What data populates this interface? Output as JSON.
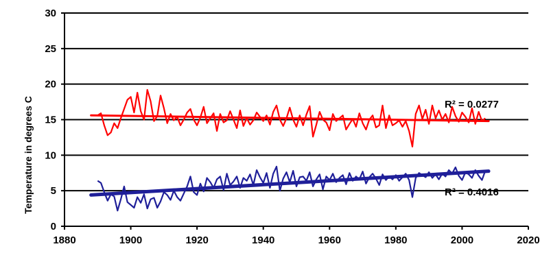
{
  "chart_data": {
    "type": "line",
    "title": "",
    "xlabel": "",
    "ylabel": "Temperature in degrees C",
    "xlim": [
      1880,
      2020
    ],
    "ylim": [
      0,
      30
    ],
    "x_ticks": [
      1880,
      1900,
      1920,
      1940,
      1960,
      1980,
      2000,
      2020
    ],
    "y_ticks": [
      0,
      5,
      10,
      15,
      20,
      25,
      30
    ],
    "grid": "horizontal",
    "legend": "none",
    "series": [
      {
        "color": "#ff0000",
        "x": [
          1890,
          1891,
          1892,
          1893,
          1894,
          1895,
          1896,
          1897,
          1898,
          1899,
          1900,
          1901,
          1902,
          1903,
          1904,
          1905,
          1906,
          1907,
          1908,
          1909,
          1910,
          1911,
          1912,
          1913,
          1914,
          1915,
          1916,
          1917,
          1918,
          1919,
          1920,
          1921,
          1922,
          1923,
          1924,
          1925,
          1926,
          1927,
          1928,
          1929,
          1930,
          1931,
          1932,
          1933,
          1934,
          1935,
          1936,
          1937,
          1938,
          1939,
          1940,
          1941,
          1942,
          1943,
          1944,
          1945,
          1946,
          1947,
          1948,
          1949,
          1950,
          1951,
          1952,
          1953,
          1954,
          1955,
          1956,
          1957,
          1958,
          1959,
          1960,
          1961,
          1962,
          1963,
          1964,
          1965,
          1966,
          1967,
          1968,
          1969,
          1970,
          1971,
          1972,
          1973,
          1974,
          1975,
          1976,
          1977,
          1978,
          1979,
          1980,
          1981,
          1982,
          1983,
          1984,
          1985,
          1986,
          1987,
          1988,
          1989,
          1990,
          1991,
          1992,
          1993,
          1994,
          1995,
          1996,
          1997,
          1998,
          1999,
          2000,
          2001,
          2002,
          2003,
          2004,
          2005,
          2006,
          2007
        ],
        "values": [
          15.6,
          15.9,
          14.2,
          12.8,
          13.2,
          14.5,
          13.8,
          15.2,
          16.5,
          17.8,
          18.2,
          16.0,
          18.8,
          16.2,
          15.0,
          19.2,
          17.6,
          14.8,
          15.5,
          18.4,
          16.6,
          14.5,
          15.8,
          14.9,
          15.4,
          14.2,
          15.0,
          16.0,
          16.5,
          15.0,
          14.2,
          15.3,
          16.8,
          14.5,
          15.2,
          15.9,
          13.4,
          15.8,
          14.6,
          14.9,
          16.2,
          15.0,
          13.8,
          16.3,
          14.1,
          15.2,
          14.3,
          14.9,
          16.0,
          15.4,
          14.8,
          15.6,
          14.3,
          16.1,
          17.0,
          15.0,
          14.1,
          15.2,
          16.7,
          15.0,
          14.0,
          15.6,
          14.2,
          15.7,
          16.9,
          12.6,
          14.3,
          16.1,
          15.0,
          14.6,
          13.5,
          15.8,
          14.8,
          15.2,
          15.6,
          13.6,
          14.4,
          15.1,
          14.0,
          15.9,
          14.5,
          13.6,
          15.0,
          15.6,
          13.9,
          14.2,
          17.0,
          13.8,
          15.6,
          14.2,
          14.5,
          14.9,
          14.0,
          14.8,
          13.4,
          11.2,
          15.8,
          17.0,
          15.1,
          16.4,
          14.4,
          17.0,
          15.2,
          16.3,
          15.0,
          15.8,
          14.6,
          16.8,
          15.5,
          14.7,
          16.0,
          15.4,
          14.6,
          16.6,
          14.4,
          16.1,
          14.8,
          15.2
        ]
      },
      {
        "color": "#1f1f99",
        "x": [
          1890,
          1891,
          1892,
          1893,
          1894,
          1895,
          1896,
          1897,
          1898,
          1899,
          1900,
          1901,
          1902,
          1903,
          1904,
          1905,
          1906,
          1907,
          1908,
          1909,
          1910,
          1911,
          1912,
          1913,
          1914,
          1915,
          1916,
          1917,
          1918,
          1919,
          1920,
          1921,
          1922,
          1923,
          1924,
          1925,
          1926,
          1927,
          1928,
          1929,
          1930,
          1931,
          1932,
          1933,
          1934,
          1935,
          1936,
          1937,
          1938,
          1939,
          1940,
          1941,
          1942,
          1943,
          1944,
          1945,
          1946,
          1947,
          1948,
          1949,
          1950,
          1951,
          1952,
          1953,
          1954,
          1955,
          1956,
          1957,
          1958,
          1959,
          1960,
          1961,
          1962,
          1963,
          1964,
          1965,
          1966,
          1967,
          1968,
          1969,
          1970,
          1971,
          1972,
          1973,
          1974,
          1975,
          1976,
          1977,
          1978,
          1979,
          1980,
          1981,
          1982,
          1983,
          1984,
          1985,
          1986,
          1987,
          1988,
          1989,
          1990,
          1991,
          1992,
          1993,
          1994,
          1995,
          1996,
          1997,
          1998,
          1999,
          2000,
          2001,
          2002,
          2003,
          2004,
          2005,
          2006,
          2007
        ],
        "values": [
          6.4,
          6.1,
          4.8,
          3.6,
          4.5,
          4.2,
          2.2,
          3.8,
          5.6,
          3.4,
          3.0,
          2.6,
          4.1,
          3.3,
          4.5,
          2.5,
          3.8,
          4.0,
          2.6,
          3.5,
          4.8,
          4.4,
          3.7,
          5.0,
          4.1,
          3.6,
          4.6,
          5.6,
          7.0,
          4.8,
          4.4,
          6.0,
          4.9,
          6.8,
          6.2,
          5.4,
          6.6,
          7.0,
          5.1,
          7.4,
          5.8,
          6.3,
          7.0,
          5.4,
          6.8,
          6.4,
          7.3,
          5.8,
          7.9,
          6.9,
          6.1,
          7.5,
          5.4,
          7.4,
          8.4,
          5.0,
          6.7,
          7.6,
          6.2,
          7.8,
          5.6,
          6.9,
          7.0,
          6.4,
          7.6,
          5.6,
          6.6,
          7.3,
          5.2,
          7.0,
          6.5,
          7.4,
          6.2,
          6.8,
          7.2,
          5.9,
          7.5,
          6.4,
          7.0,
          6.6,
          7.7,
          6.0,
          6.9,
          7.4,
          6.7,
          5.8,
          7.3,
          6.5,
          7.0,
          6.6,
          7.2,
          6.4,
          6.9,
          7.4,
          6.5,
          4.1,
          6.8,
          7.5,
          7.2,
          6.9,
          7.6,
          6.8,
          7.3,
          6.6,
          7.4,
          7.0,
          7.9,
          7.4,
          8.3,
          7.1,
          6.5,
          7.6,
          7.3,
          6.8,
          7.9,
          7.1,
          6.5,
          7.8
        ]
      }
    ],
    "trendlines": [
      {
        "color": "#ff0000",
        "x": [
          1888,
          2008
        ],
        "y": [
          15.6,
          14.8
        ],
        "label": "R² = 0.0277"
      },
      {
        "color": "#1f1f99",
        "x": [
          1888,
          2008
        ],
        "y": [
          4.4,
          7.75
        ],
        "label": "R² = 0.4016"
      }
    ]
  }
}
